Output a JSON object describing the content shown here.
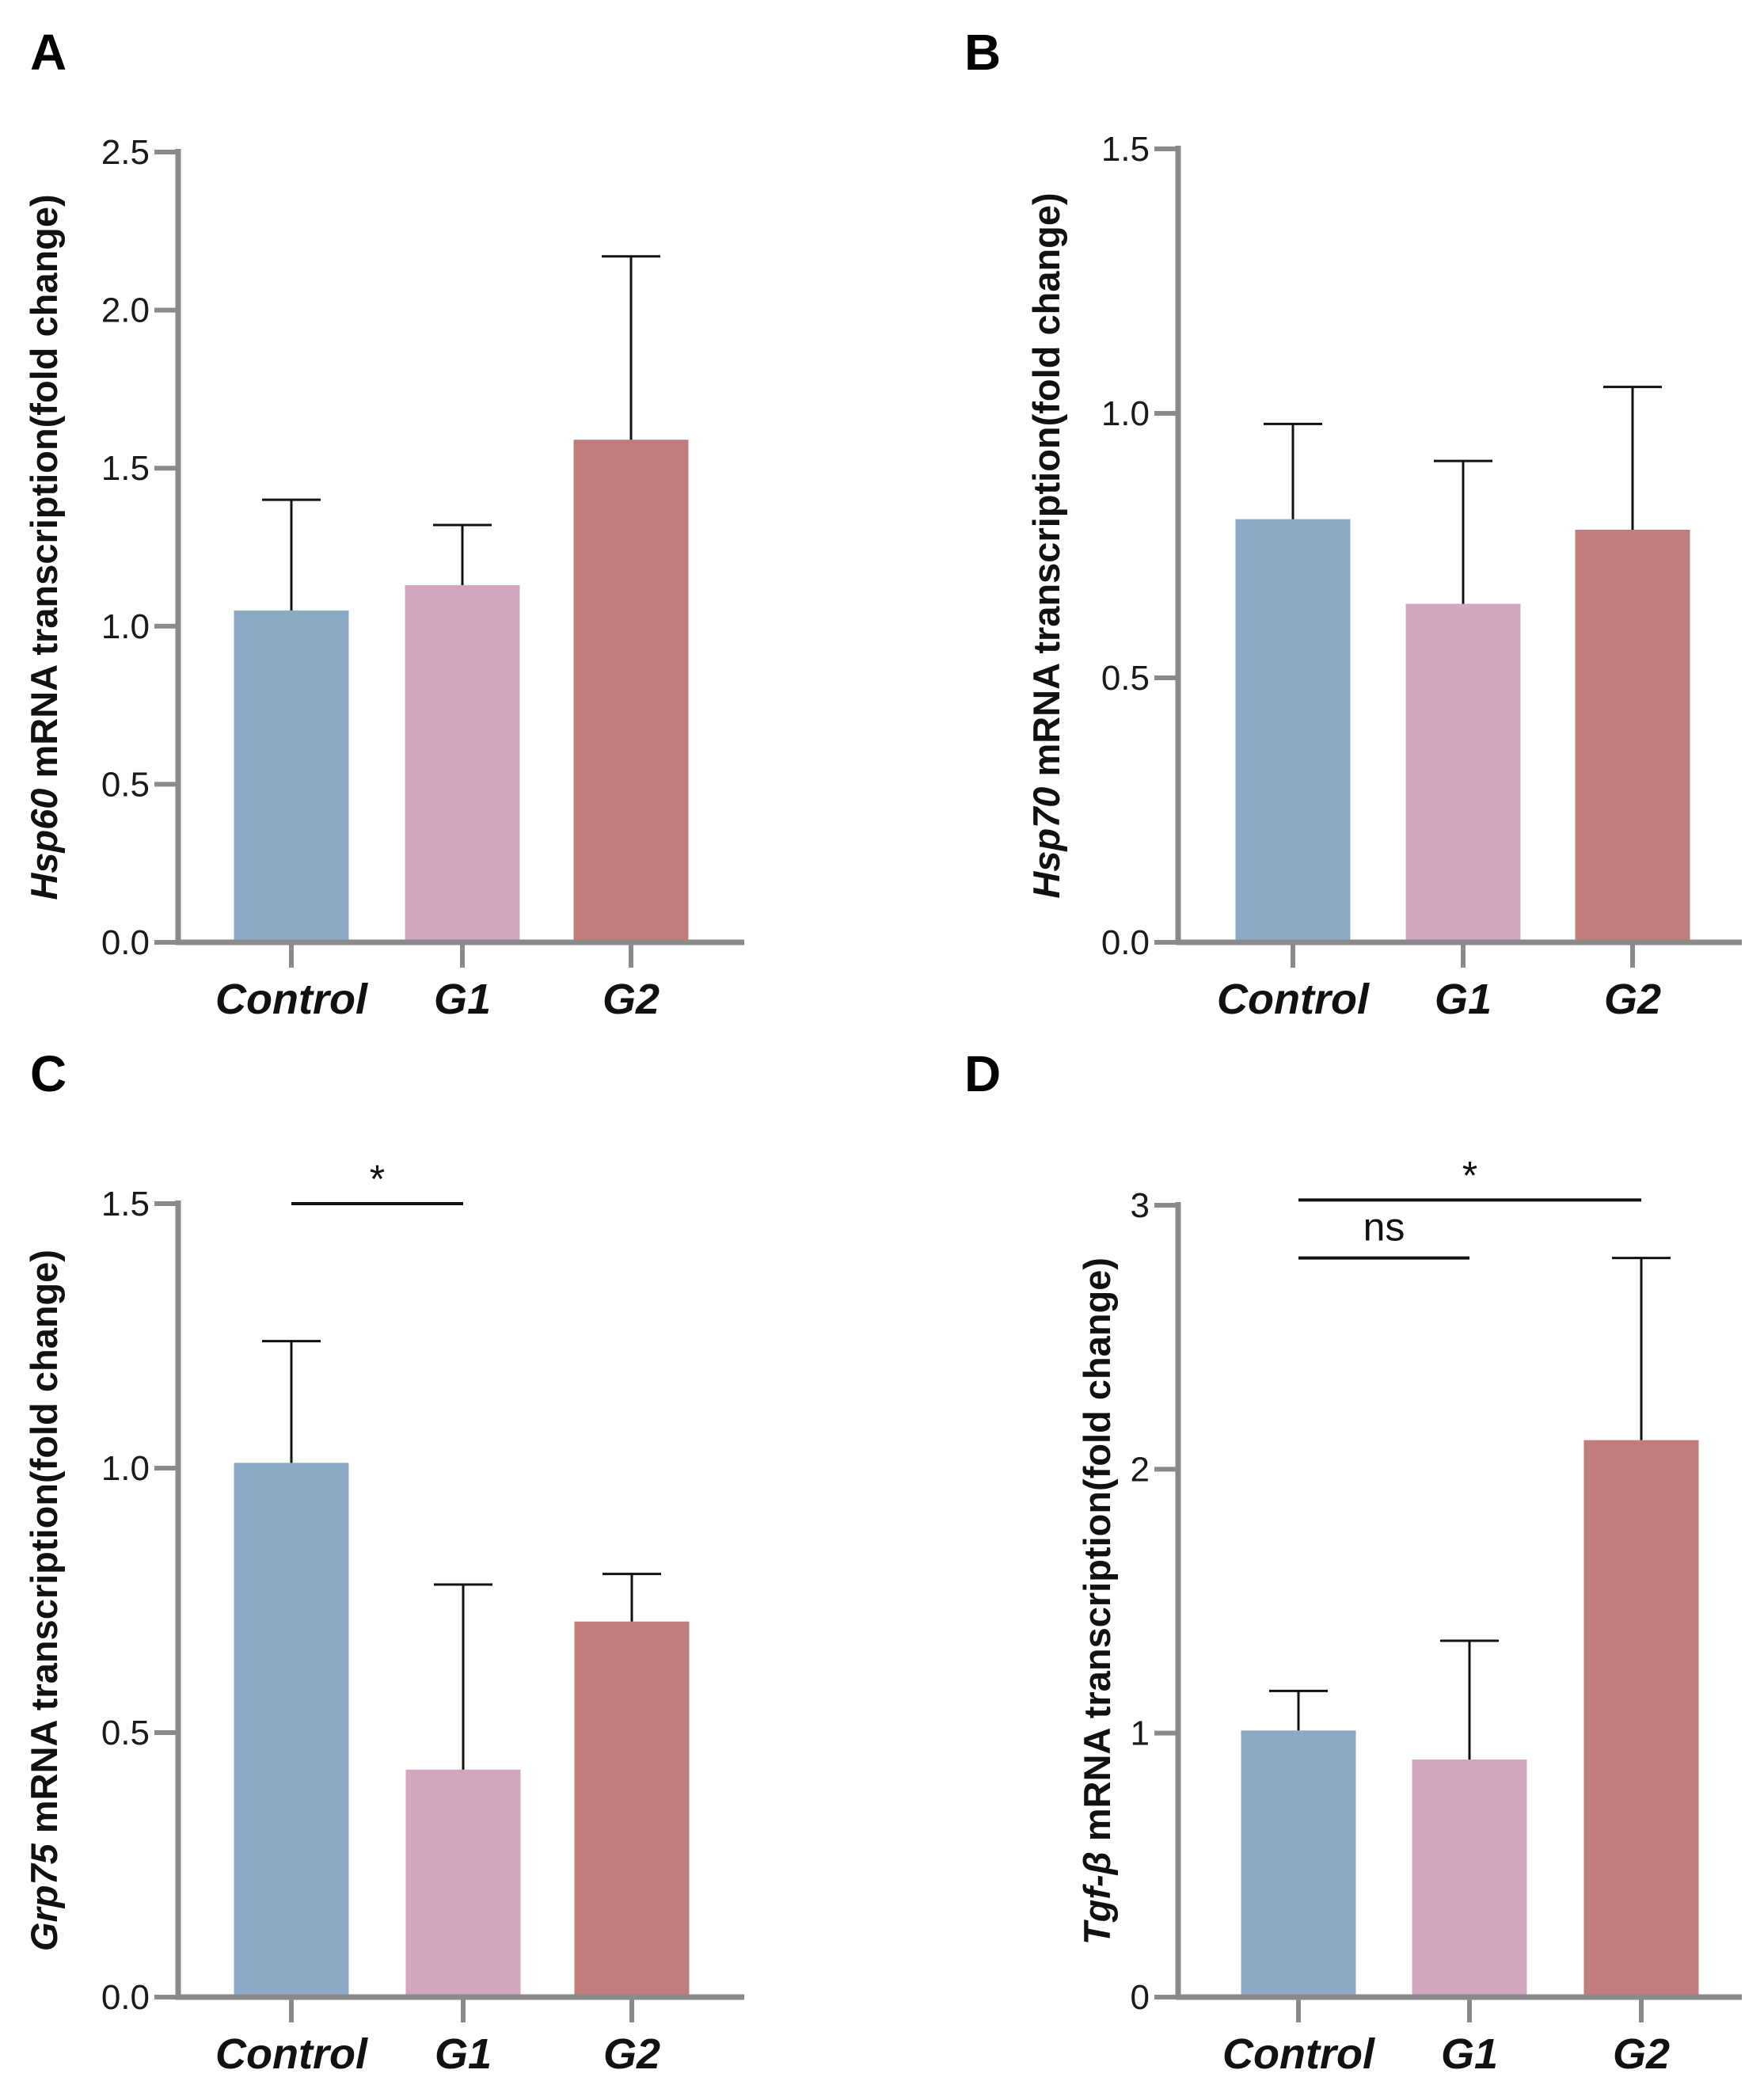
{
  "colors": {
    "control": "#8ca9c6",
    "g1": "#d4a5be",
    "g2": "#c17d7b",
    "axis": "#8a8a8a",
    "errorbar": "#111111"
  },
  "chart_data": [
    {
      "type": "bar",
      "panel": "A",
      "categories": [
        "Control",
        "G1",
        "G2"
      ],
      "values": [
        1.05,
        1.13,
        1.59
      ],
      "errors": [
        0.35,
        0.19,
        0.58
      ],
      "ylabel_gene": "Hsp60",
      "ylabel_rest": " mRNA transcription(fold change)",
      "ylim": [
        0,
        2.5
      ],
      "yticks": [
        0,
        0.5,
        1.0,
        1.5,
        2.0,
        2.5
      ],
      "ytick_labels": [
        "0.0",
        "0.5",
        "1.0",
        "1.5",
        "2.0",
        "2.5"
      ],
      "significance": []
    },
    {
      "type": "bar",
      "panel": "B",
      "categories": [
        "Control",
        "G1",
        "G2"
      ],
      "values": [
        0.8,
        0.64,
        0.78
      ],
      "errors": [
        0.18,
        0.27,
        0.27
      ],
      "ylabel_gene": "Hsp70",
      "ylabel_rest": " mRNA transcription(fold change)",
      "ylim": [
        0,
        1.5
      ],
      "yticks": [
        0,
        0.5,
        1.0,
        1.5
      ],
      "ytick_labels": [
        "0.0",
        "0.5",
        "1.0",
        "1.5"
      ],
      "significance": []
    },
    {
      "type": "bar",
      "panel": "C",
      "categories": [
        "Control",
        "G1",
        "G2"
      ],
      "values": [
        1.01,
        0.43,
        0.71
      ],
      "errors": [
        0.23,
        0.35,
        0.09
      ],
      "ylabel_gene": "Grp75",
      "ylabel_rest": " mRNA transcription(fold change)",
      "ylim": [
        0,
        1.5
      ],
      "yticks": [
        0,
        0.5,
        1.0,
        1.5
      ],
      "ytick_labels": [
        "0.0",
        "0.5",
        "1.0",
        "1.5"
      ],
      "significance": [
        {
          "from": "Control",
          "to": "G1",
          "label": "*",
          "level": 1.5
        }
      ]
    },
    {
      "type": "bar",
      "panel": "D",
      "categories": [
        "Control",
        "G1",
        "G2"
      ],
      "values": [
        1.01,
        0.9,
        2.11
      ],
      "errors": [
        0.15,
        0.45,
        0.69
      ],
      "ylabel_gene": "Tgf-β",
      "ylabel_rest": " mRNA transcription(fold change)",
      "ylim": [
        0,
        3
      ],
      "yticks": [
        0,
        1,
        2,
        3
      ],
      "ytick_labels": [
        "0",
        "1",
        "2",
        "3"
      ],
      "significance": [
        {
          "from": "Control",
          "to": "G1",
          "label": "ns",
          "level": 2.8
        },
        {
          "from": "Control",
          "to": "G2",
          "label": "*",
          "level": 3.02
        }
      ]
    }
  ]
}
